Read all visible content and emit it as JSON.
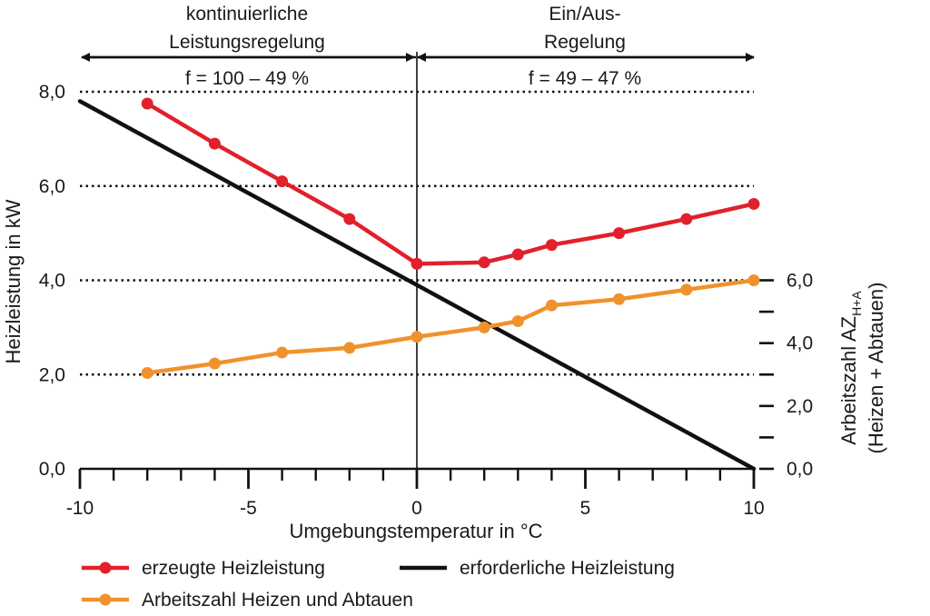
{
  "chart_data": {
    "type": "line",
    "xlabel": "Umgebungstemperatur in °C",
    "ylabel_left": "Heizleistung in kW",
    "ylabel_right_line1": "Arbeitszahl AZ",
    "ylabel_right_sub": "H+A",
    "ylabel_right_line2": "(Heizen + Abtauen)",
    "xlim": [
      -10,
      10
    ],
    "ylim_left": [
      0,
      8
    ],
    "ylim_right": [
      0,
      12
    ],
    "x_ticks": [
      "-10",
      "-5",
      "0",
      "5",
      "10"
    ],
    "y_ticks_left": [
      "0,0",
      "2,0",
      "4,0",
      "6,0",
      "8,0"
    ],
    "y_ticks_right": [
      "0,0",
      "2,0",
      "4,0",
      "6,0"
    ],
    "grid": "dotted horizontal at left y ticks 2, 4, 6, 8",
    "regions": [
      {
        "label_line1": "kontinuierliche",
        "label_line2": "Leistungsregelung",
        "formula": "f = 100 – 49 %",
        "x_range": [
          -10,
          0
        ]
      },
      {
        "label_line1": "Ein/Aus-",
        "label_line2": "Regelung",
        "formula": "f = 49 – 47  %",
        "x_range": [
          0,
          10
        ]
      }
    ],
    "series": [
      {
        "name": "erzeugte Heizleistung",
        "color": "#e2202b",
        "axis": "left",
        "marker": "circle",
        "points": [
          [
            -8,
            7.75
          ],
          [
            -6,
            6.9
          ],
          [
            -4,
            6.1
          ],
          [
            -2,
            5.3
          ],
          [
            0,
            4.35
          ],
          [
            2,
            4.38
          ],
          [
            3,
            4.55
          ],
          [
            4,
            4.75
          ],
          [
            6,
            5.0
          ],
          [
            8,
            5.3
          ],
          [
            10,
            5.62
          ]
        ]
      },
      {
        "name": "erforderliche Heizleistung",
        "color": "#111111",
        "axis": "left",
        "marker": "none",
        "points": [
          [
            -10,
            7.8
          ],
          [
            10,
            0.0
          ]
        ]
      },
      {
        "name": "Arbeitszahl Heizen und Abtauen",
        "color": "#f0922c",
        "axis": "right",
        "marker": "circle",
        "points": [
          [
            -8,
            3.05
          ],
          [
            -6,
            3.35
          ],
          [
            -4,
            3.7
          ],
          [
            -2,
            3.85
          ],
          [
            0,
            4.2
          ],
          [
            2,
            4.5
          ],
          [
            3,
            4.7
          ],
          [
            4,
            5.2
          ],
          [
            6,
            5.4
          ],
          [
            8,
            5.7
          ],
          [
            10,
            6.0
          ]
        ]
      }
    ],
    "legend": [
      {
        "label": "erzeugte Heizleistung",
        "color": "#e2202b",
        "marker": true
      },
      {
        "label": "erforderliche Heizleistung",
        "color": "#111111",
        "marker": false
      },
      {
        "label": "Arbeitszahl Heizen und Abtauen",
        "color": "#f0922c",
        "marker": true
      }
    ]
  }
}
